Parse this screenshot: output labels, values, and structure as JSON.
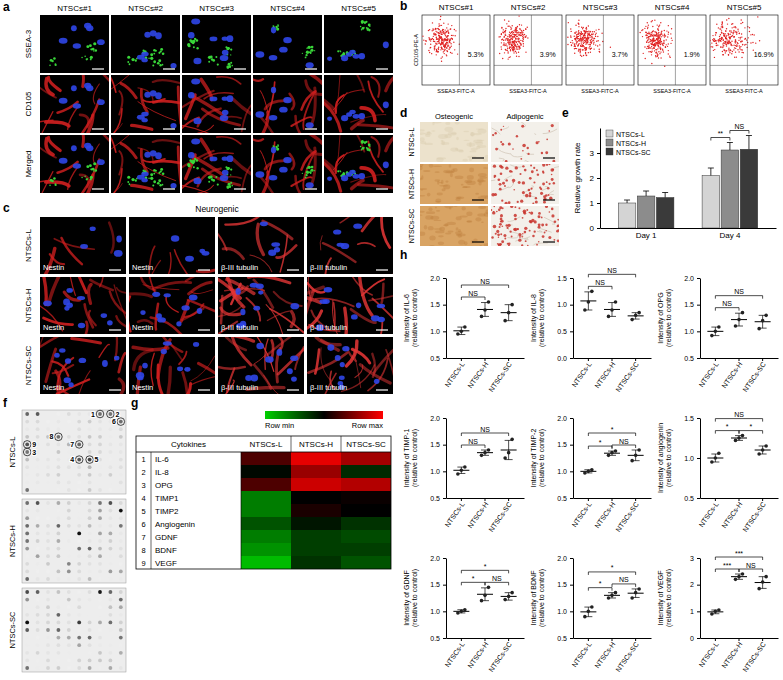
{
  "letters": [
    "a",
    "b",
    "c",
    "d",
    "e",
    "f",
    "g",
    "h"
  ],
  "panel_a": {
    "columns": [
      "NTSCs#1",
      "NTSCs#2",
      "NTSCs#3",
      "NTSCs#4",
      "NTSCs#5"
    ],
    "rows": [
      "SSEA-3",
      "CD105",
      "Merged"
    ]
  },
  "panel_b": {
    "columns": [
      "NTSCs#1",
      "NTSCs#2",
      "NTSCs#3",
      "NTSCs#4",
      "NTSCs#5"
    ],
    "y_label": "CD105-PE-A",
    "x_label": "SSEA3-FITC-A",
    "gate_labels": [
      "5.3%",
      "3.9%",
      "3.7%",
      "1.9%",
      "16.9%"
    ]
  },
  "panel_c": {
    "title": "Neurogenic",
    "rows": [
      "NTSCs-L",
      "NTSCs-H",
      "NTSCs-SC"
    ],
    "stains": [
      "Nestin",
      "Nestin",
      "β-III tubulin",
      "β-III tubulin"
    ]
  },
  "panel_d": {
    "columns": [
      "Osteogenic",
      "Adipogenic"
    ],
    "rows": [
      "NTSCs-L",
      "NTSCs-H",
      "NTSCs-SC"
    ]
  },
  "panel_f": {
    "rows": [
      "NTSCs-L",
      "NTSCs-H",
      "NTSCs-SC"
    ],
    "spot_numbers": [
      "1",
      "2",
      "3",
      "4",
      "5",
      "6",
      "7",
      "8",
      "9"
    ]
  },
  "chart_data": [
    {
      "type": "bar",
      "y_label": "Relative growth rate",
      "categories": [
        "Day 1",
        "Day 4"
      ],
      "series": [
        {
          "name": "NTSCs-L",
          "color": "#d4d4d4",
          "values": [
            1.0,
            2.1
          ],
          "errors": [
            0.12,
            0.3
          ]
        },
        {
          "name": "NTSCs-H",
          "color": "#8c8c8c",
          "values": [
            1.28,
            3.12
          ],
          "errors": [
            0.2,
            0.3
          ]
        },
        {
          "name": "NTSCs-SC",
          "color": "#3a3a3a",
          "values": [
            1.22,
            3.15
          ],
          "errors": [
            0.2,
            0.55
          ]
        }
      ],
      "ylim": [
        0,
        4
      ],
      "yticks": [
        0,
        1,
        2,
        3
      ],
      "legend": "top-left",
      "comparisons": [
        {
          "category": "Day 4",
          "groups": [
            "NTSCs-L",
            "NTSCs-H"
          ],
          "label": "**"
        },
        {
          "category": "Day 4",
          "groups": [
            "NTSCs-H",
            "NTSCs-SC"
          ],
          "label": "NS"
        }
      ]
    },
    {
      "type": "heatmap",
      "row_header": "Cytokines",
      "columns": [
        "NTSCs-L",
        "NTSCs-H",
        "NTSCs-SC"
      ],
      "row_numbers": [
        "1",
        "2",
        "3",
        "4",
        "5",
        "6",
        "7",
        "8",
        "9"
      ],
      "rows": [
        "IL-6",
        "IL-8",
        "OPG",
        "TIMP1",
        "TIMP2",
        "Angiogenin",
        "GDNF",
        "BDNF",
        "VEGF"
      ],
      "cells": [
        [
          0.65,
          0.95,
          0.82
        ],
        [
          0.48,
          0.8,
          0.4
        ],
        [
          0.65,
          0.9,
          0.85
        ],
        [
          0.2,
          0.5,
          0.52
        ],
        [
          0.2,
          0.55,
          0.5
        ],
        [
          0.3,
          0.45,
          0.38
        ],
        [
          0.2,
          0.35,
          0.32
        ],
        [
          0.15,
          0.35,
          0.35
        ],
        [
          0.05,
          0.38,
          0.3
        ]
      ],
      "colorbar": {
        "range": [
          0,
          1
        ],
        "labels": [
          "Row min",
          "Row max"
        ],
        "colors": [
          "#00d000",
          "#000000",
          "#ff0000"
        ]
      }
    },
    {
      "type": "scatter",
      "y_label": [
        "Intensity of IL-6",
        "(relative to control)"
      ],
      "categories": [
        "NTSCs-L",
        "NTSCs-H",
        "NTSCs-SC"
      ],
      "points": [
        [
          0.95,
          1.0,
          1.08
        ],
        [
          1.28,
          1.4,
          1.55
        ],
        [
          1.2,
          1.35,
          1.5
        ]
      ],
      "mean": [
        1.01,
        1.41,
        1.35
      ],
      "sd": [
        0.07,
        0.13,
        0.15
      ],
      "ylim": [
        0.5,
        2
      ],
      "yticks": [
        0.5,
        {
          "value": 1,
          "label": "1.0"
        },
        1.5,
        {
          "value": 2,
          "label": "2.0"
        }
      ],
      "comparisons": [
        {
          "groups": [
            "NTSCs-L",
            "NTSCs-H"
          ],
          "label": "NS"
        },
        {
          "groups": [
            "NTSCs-L",
            "NTSCs-SC"
          ],
          "label": "NS"
        }
      ]
    },
    {
      "type": "scatter",
      "y_label": [
        "Intensity of IL-8",
        "(relative to control)"
      ],
      "categories": [
        "NTSCs-L",
        "NTSCs-H",
        "NTSCs-SC"
      ],
      "points": [
        [
          0.9,
          1.05,
          1.25
        ],
        [
          0.78,
          0.9,
          1.05
        ],
        [
          0.72,
          0.8,
          0.85
        ]
      ],
      "mean": [
        1.07,
        0.91,
        0.79
      ],
      "sd": [
        0.17,
        0.13,
        0.06
      ],
      "ylim": [
        0,
        1.5
      ],
      "yticks": [
        {
          "value": 0,
          "label": "0.0"
        },
        0.5,
        {
          "value": 1,
          "label": "1.0"
        },
        1.5
      ],
      "comparisons": [
        {
          "groups": [
            "NTSCs-L",
            "NTSCs-H"
          ],
          "label": "NS"
        },
        {
          "groups": [
            "NTSCs-L",
            "NTSCs-SC"
          ],
          "label": "NS"
        }
      ]
    },
    {
      "type": "scatter",
      "y_label": [
        "Intensity of OPG",
        "(relative to control)"
      ],
      "categories": [
        "NTSCs-L",
        "NTSCs-H",
        "NTSCs-SC"
      ],
      "points": [
        [
          0.92,
          1.0,
          1.08
        ],
        [
          1.1,
          1.22,
          1.35
        ],
        [
          1.05,
          1.2,
          1.3
        ]
      ],
      "mean": [
        1.0,
        1.22,
        1.18
      ],
      "sd": [
        0.08,
        0.12,
        0.12
      ],
      "ylim": [
        0.5,
        2
      ],
      "yticks": [
        0.5,
        {
          "value": 1,
          "label": "1.0"
        },
        1.5,
        {
          "value": 2,
          "label": "2.0"
        }
      ],
      "comparisons": [
        {
          "groups": [
            "NTSCs-L",
            "NTSCs-H"
          ],
          "label": "NS"
        },
        {
          "groups": [
            "NTSCs-L",
            "NTSCs-SC"
          ],
          "label": "NS"
        }
      ]
    },
    {
      "type": "scatter",
      "y_label": [
        "Intensity of TIMP-1",
        "(relative to control)"
      ],
      "categories": [
        "NTSCs-L",
        "NTSCs-H",
        "NTSCs-SC"
      ],
      "points": [
        [
          0.95,
          1.02,
          1.08
        ],
        [
          1.3,
          1.35,
          1.4
        ],
        [
          1.25,
          1.35,
          1.6
        ]
      ],
      "mean": [
        1.02,
        1.35,
        1.4
      ],
      "sd": [
        0.06,
        0.05,
        0.18
      ],
      "ylim": [
        0.5,
        2
      ],
      "yticks": [
        0.5,
        {
          "value": 1,
          "label": "1.0"
        },
        1.5,
        {
          "value": 2,
          "label": "2.0"
        }
      ],
      "comparisons": [
        {
          "groups": [
            "NTSCs-L",
            "NTSCs-H"
          ],
          "label": "NS"
        },
        {
          "groups": [
            "NTSCs-L",
            "NTSCs-SC"
          ],
          "label": "NS"
        }
      ]
    },
    {
      "type": "scatter",
      "y_label": [
        "Intensity of TIMP-2",
        "(relative to control)"
      ],
      "categories": [
        "NTSCs-L",
        "NTSCs-H",
        "NTSCs-SC"
      ],
      "points": [
        [
          0.97,
          1.0,
          1.03
        ],
        [
          1.3,
          1.35,
          1.38
        ],
        [
          1.2,
          1.3,
          1.4
        ]
      ],
      "mean": [
        1.0,
        1.34,
        1.3
      ],
      "sd": [
        0.03,
        0.04,
        0.1
      ],
      "ylim": [
        0.5,
        2
      ],
      "yticks": [
        0.5,
        {
          "value": 1,
          "label": "1.0"
        },
        1.5,
        {
          "value": 2,
          "label": "2.0"
        }
      ],
      "comparisons": [
        {
          "groups": [
            "NTSCs-L",
            "NTSCs-H"
          ],
          "label": "*"
        },
        {
          "groups": [
            "NTSCs-H",
            "NTSCs-SC"
          ],
          "label": "NS"
        },
        {
          "groups": [
            "NTSCs-L",
            "NTSCs-SC"
          ],
          "label": "*"
        }
      ]
    },
    {
      "type": "scatter",
      "y_label": [
        "Intensity of angiogenin",
        "(relative to control)"
      ],
      "categories": [
        "NTSCs-L",
        "NTSCs-H",
        "NTSCs-SC"
      ],
      "points": [
        [
          0.95,
          1.0,
          1.06
        ],
        [
          1.22,
          1.25,
          1.28
        ],
        [
          1.05,
          1.1,
          1.15
        ]
      ],
      "mean": [
        1.0,
        1.25,
        1.1
      ],
      "sd": [
        0.05,
        0.03,
        0.05
      ],
      "ylim": [
        0.5,
        1.5
      ],
      "yticks": [
        0.5,
        {
          "value": 1,
          "label": "1.0"
        },
        1.5
      ],
      "comparisons": [
        {
          "groups": [
            "NTSCs-L",
            "NTSCs-H"
          ],
          "label": "*"
        },
        {
          "groups": [
            "NTSCs-H",
            "NTSCs-SC"
          ],
          "label": "*"
        },
        {
          "groups": [
            "NTSCs-L",
            "NTSCs-SC"
          ],
          "label": "NS"
        }
      ]
    },
    {
      "type": "scatter",
      "y_label": [
        "Intensity of GDNF",
        "(relative to control)"
      ],
      "categories": [
        "NTSCs-L",
        "NTSCs-H",
        "NTSCs-SC"
      ],
      "points": [
        [
          0.97,
          1.0,
          1.03
        ],
        [
          1.2,
          1.3,
          1.45
        ],
        [
          1.22,
          1.28,
          1.35
        ]
      ],
      "mean": [
        1.0,
        1.32,
        1.28
      ],
      "sd": [
        0.03,
        0.12,
        0.07
      ],
      "ylim": [
        0.5,
        2
      ],
      "yticks": [
        0.5,
        {
          "value": 1,
          "label": "1.0"
        },
        1.5,
        {
          "value": 2,
          "label": "2.0"
        }
      ],
      "comparisons": [
        {
          "groups": [
            "NTSCs-L",
            "NTSCs-H"
          ],
          "label": "*"
        },
        {
          "groups": [
            "NTSCs-H",
            "NTSCs-SC"
          ],
          "label": "NS"
        },
        {
          "groups": [
            "NTSCs-L",
            "NTSCs-SC"
          ],
          "label": "*"
        }
      ]
    },
    {
      "type": "scatter",
      "y_label": [
        "Intensity of BDNF",
        "(relative to control)"
      ],
      "categories": [
        "NTSCs-L",
        "NTSCs-H",
        "NTSCs-SC"
      ],
      "points": [
        [
          0.9,
          1.0,
          1.08
        ],
        [
          1.25,
          1.3,
          1.35
        ],
        [
          1.25,
          1.35,
          1.42
        ]
      ],
      "mean": [
        0.99,
        1.3,
        1.34
      ],
      "sd": [
        0.09,
        0.05,
        0.08
      ],
      "ylim": [
        0.5,
        2
      ],
      "yticks": [
        0.5,
        {
          "value": 1,
          "label": "1.0"
        },
        1.5,
        {
          "value": 2,
          "label": "2.0"
        }
      ],
      "comparisons": [
        {
          "groups": [
            "NTSCs-L",
            "NTSCs-H"
          ],
          "label": "*"
        },
        {
          "groups": [
            "NTSCs-H",
            "NTSCs-SC"
          ],
          "label": "NS"
        },
        {
          "groups": [
            "NTSCs-L",
            "NTSCs-SC"
          ],
          "label": "*"
        }
      ]
    },
    {
      "type": "scatter",
      "y_label": [
        "Intensity of VEGF",
        "(relative to control)"
      ],
      "categories": [
        "NTSCs-L",
        "NTSCs-H",
        "NTSCs-SC"
      ],
      "points": [
        [
          0.9,
          1.0,
          1.05
        ],
        [
          2.2,
          2.3,
          2.4
        ],
        [
          1.85,
          2.1,
          2.3
        ]
      ],
      "mean": [
        0.98,
        2.3,
        2.08
      ],
      "sd": [
        0.07,
        0.1,
        0.22
      ],
      "ylim": [
        0,
        3
      ],
      "yticks": [
        0,
        1,
        2,
        3
      ],
      "comparisons": [
        {
          "groups": [
            "NTSCs-L",
            "NTSCs-H"
          ],
          "label": "***"
        },
        {
          "groups": [
            "NTSCs-H",
            "NTSCs-SC"
          ],
          "label": "NS"
        },
        {
          "groups": [
            "NTSCs-L",
            "NTSCs-SC"
          ],
          "label": "***"
        }
      ]
    }
  ]
}
